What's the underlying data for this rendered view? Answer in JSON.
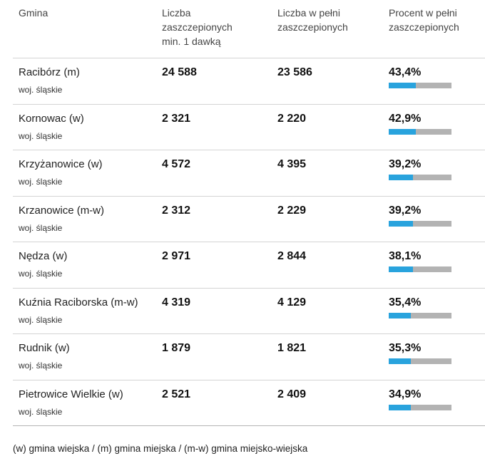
{
  "header": {
    "name": "Gmina",
    "dose1": "Liczba\nzaszczepionych\nmin. 1 dawką",
    "full": "Liczba w pełni\nzaszczepionych",
    "percent": "Procent w pełni\nzaszczepionych"
  },
  "rows": [
    {
      "name": "Racibórz (m)",
      "region": "woj. śląskie",
      "dose1": "24 588",
      "full": "23 586",
      "percent": "43,4%",
      "percent_value": 43.4
    },
    {
      "name": "Kornowac (w)",
      "region": "woj. śląskie",
      "dose1": "2 321",
      "full": "2 220",
      "percent": "42,9%",
      "percent_value": 42.9
    },
    {
      "name": "Krzyżanowice (w)",
      "region": "woj. śląskie",
      "dose1": "4 572",
      "full": "4 395",
      "percent": "39,2%",
      "percent_value": 39.2
    },
    {
      "name": "Krzanowice (m-w)",
      "region": "woj. śląskie",
      "dose1": "2 312",
      "full": "2 229",
      "percent": "39,2%",
      "percent_value": 39.2
    },
    {
      "name": "Nędza (w)",
      "region": "woj. śląskie",
      "dose1": "2 971",
      "full": "2 844",
      "percent": "38,1%",
      "percent_value": 38.1
    },
    {
      "name": "Kuźnia Raciborska (m-w)",
      "region": "woj. śląskie",
      "dose1": "4 319",
      "full": "4 129",
      "percent": "35,4%",
      "percent_value": 35.4
    },
    {
      "name": "Rudnik (w)",
      "region": "woj. śląskie",
      "dose1": "1 879",
      "full": "1 821",
      "percent": "35,3%",
      "percent_value": 35.3
    },
    {
      "name": "Pietrowice Wielkie (w)",
      "region": "woj. śląskie",
      "dose1": "2 521",
      "full": "2 409",
      "percent": "34,9%",
      "percent_value": 34.9
    }
  ],
  "footnote": "(w) gmina wiejska / (m) gmina miejska / (m-w) gmina miejsko-wiejska",
  "colors": {
    "bar_fill": "#29a3dd",
    "bar_track": "#b3b3b3"
  }
}
